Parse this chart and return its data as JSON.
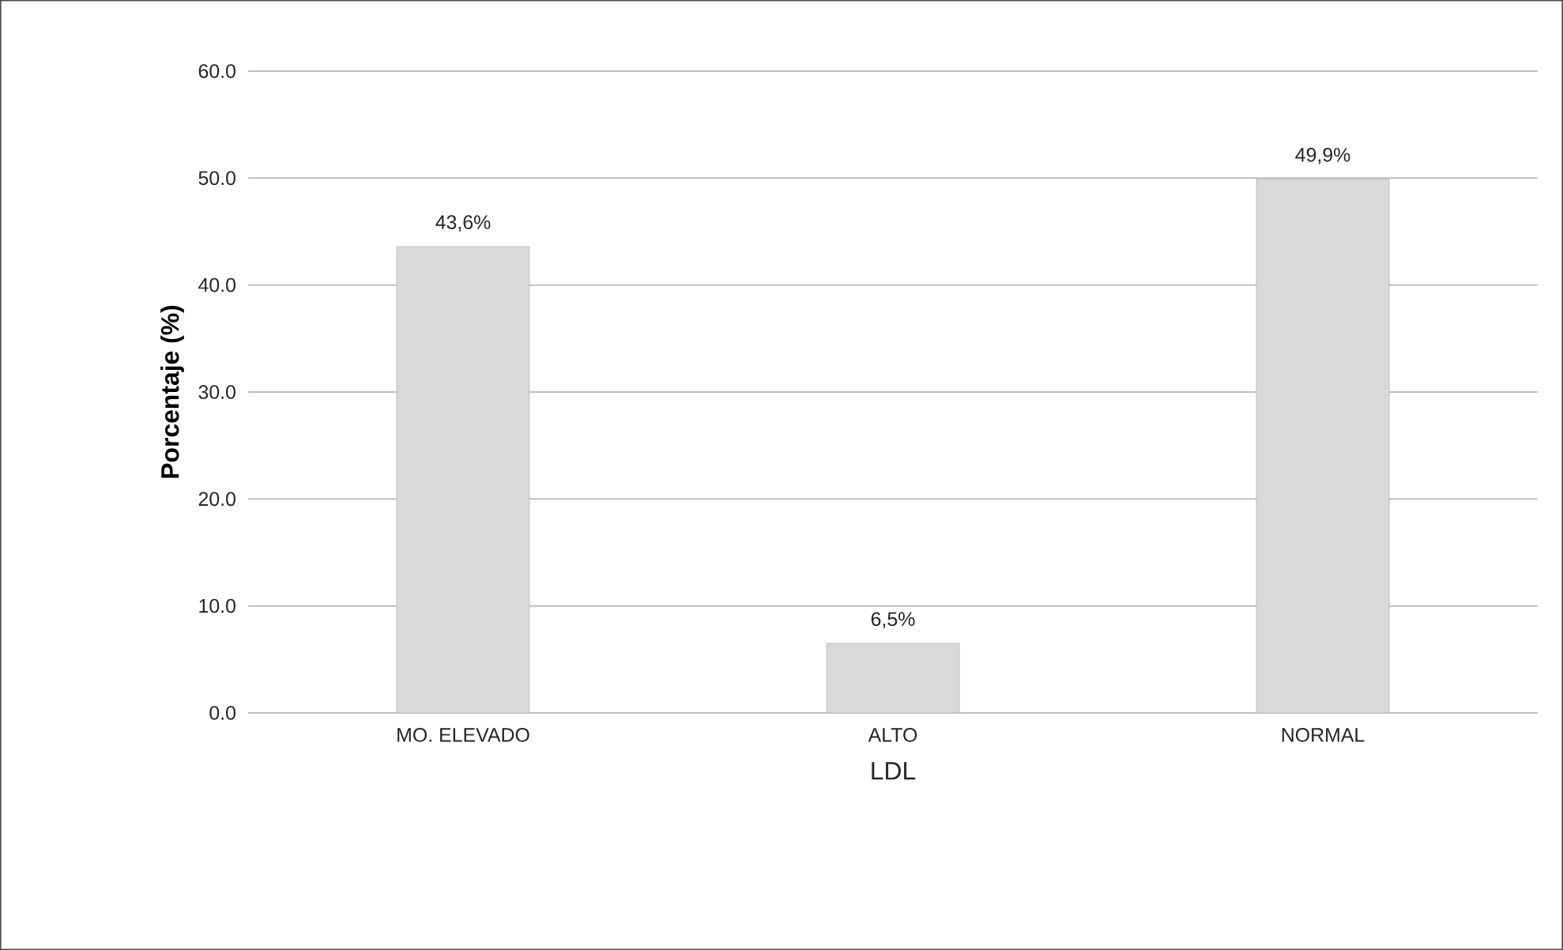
{
  "chart_data": {
    "type": "bar",
    "xlabel": "LDL",
    "ylabel": "Porcentaje (%)",
    "categories": [
      "MO. ELEVADO",
      "ALTO",
      "NORMAL"
    ],
    "values": [
      43.6,
      6.5,
      49.9
    ],
    "value_labels": [
      "43,6%",
      "6,5%",
      "49,9%"
    ],
    "color": "#d9d9d9",
    "ylim": [
      0,
      60
    ],
    "yticks": [
      {
        "value": 0,
        "label": "0.0"
      },
      {
        "value": 10,
        "label": "10.0"
      },
      {
        "value": 20,
        "label": "20.0"
      },
      {
        "value": 30,
        "label": "30.0"
      },
      {
        "value": 40,
        "label": "40.0"
      },
      {
        "value": 50,
        "label": "50.0"
      },
      {
        "value": 60,
        "label": "60.0"
      }
    ],
    "grid": "y"
  }
}
